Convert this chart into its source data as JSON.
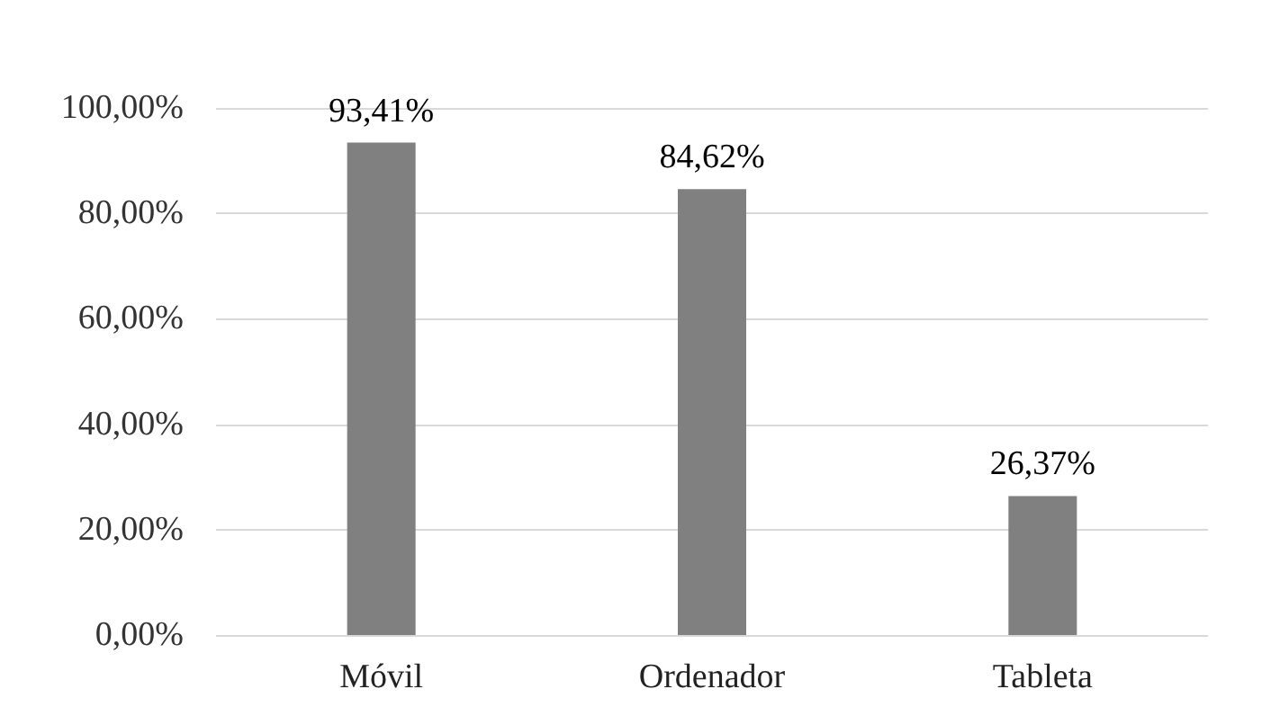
{
  "chart_data": {
    "type": "bar",
    "categories": [
      "Móvil",
      "Ordenador",
      "Tableta"
    ],
    "values": [
      93.41,
      84.62,
      26.37
    ],
    "value_labels": [
      "93,41%",
      "84,62%",
      "26,37%"
    ],
    "color": "#808080",
    "ylim": [
      0,
      100
    ],
    "yticks": [
      {
        "value": 0,
        "label": "0,00%"
      },
      {
        "value": 20,
        "label": "20,00%"
      },
      {
        "value": 40,
        "label": "40,00%"
      },
      {
        "value": 60,
        "label": "60,00%"
      },
      {
        "value": 80,
        "label": "80,00%"
      },
      {
        "value": 100,
        "label": "100,00%"
      }
    ],
    "grid": "y"
  }
}
